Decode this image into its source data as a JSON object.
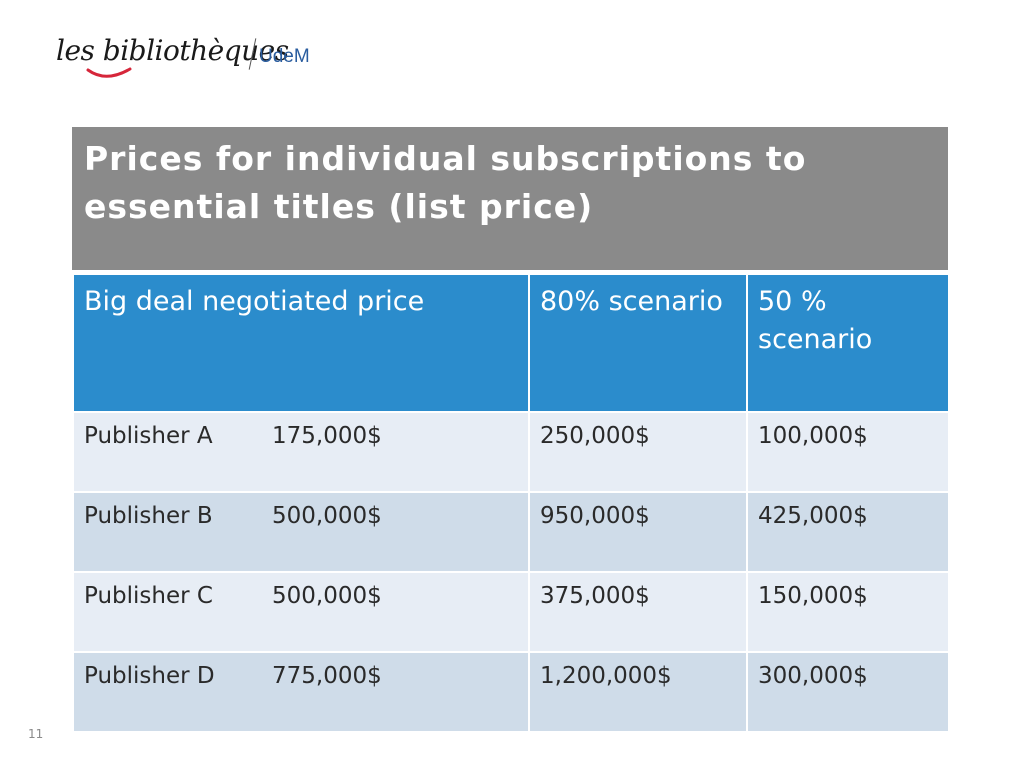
{
  "logo": {
    "script_text": "les bibliothèques",
    "org_text": "UdeM"
  },
  "title": "Prices for individual subscriptions to essential titles (list price)",
  "table": {
    "headers": [
      "Big deal negotiated price",
      "80% scenario",
      "50 % scenario"
    ],
    "rows": [
      {
        "publisher": "Publisher A",
        "big_deal": "175,000$",
        "s80": "250,000$",
        "s50": "100,000$"
      },
      {
        "publisher": "Publisher B",
        "big_deal": "500,000$",
        "s80": "950,000$",
        "s50": "425,000$"
      },
      {
        "publisher": "Publisher C",
        "big_deal": "500,000$",
        "s80": "375,000$",
        "s50": "150,000$"
      },
      {
        "publisher": "Publisher D",
        "big_deal": "775,000$",
        "s80": "1,200,000$",
        "s50": "300,000$"
      }
    ]
  },
  "slide_number": "11"
}
